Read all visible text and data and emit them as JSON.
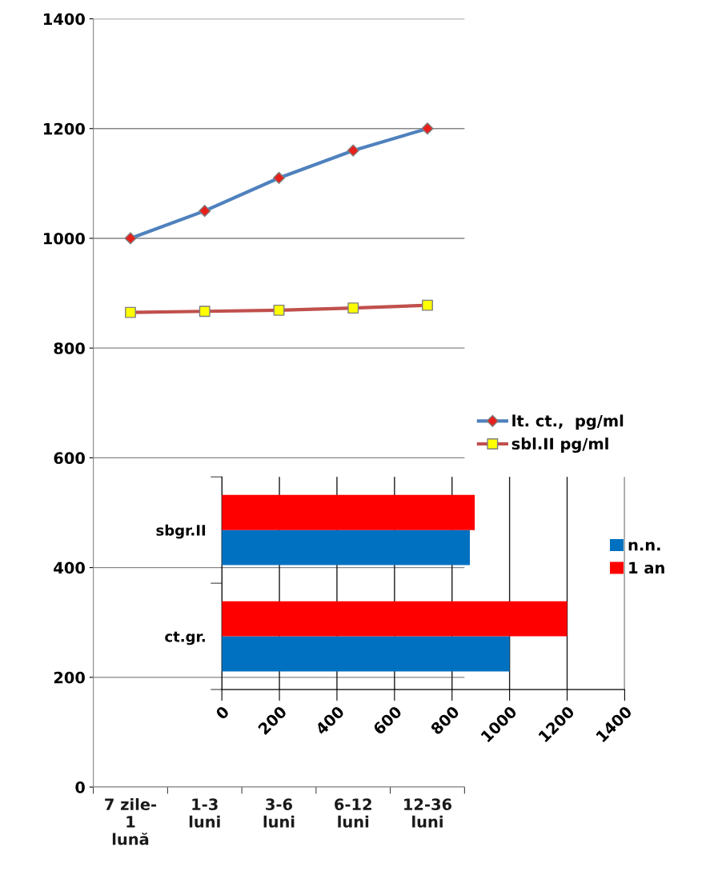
{
  "chart_data": [
    {
      "type": "line",
      "categories": [
        "7 zile-\n1\nlună",
        "1-3\nluni",
        "3-6\nluni",
        "6-12\nluni",
        "12-36\nluni"
      ],
      "series": [
        {
          "name": "lt. ct.,  pg/ml",
          "color": "#4f81bd",
          "marker": "diamond",
          "colors": [
            "#e8201c",
            "#e8201c",
            "#e8201c",
            "#e8201c",
            "#e8201c"
          ],
          "values": [
            1000,
            1050,
            1110,
            1160,
            1200
          ]
        },
        {
          "name": "sbl.II pg/ml",
          "color": "#c0504d",
          "marker": "square",
          "colors": [
            "#ffff00",
            "#ffff00",
            "#ffff00",
            "#ffff00",
            "#ffff00"
          ],
          "values": [
            865,
            867,
            869,
            873,
            878
          ]
        }
      ],
      "ylim": [
        0,
        1400
      ],
      "yticks": [
        0,
        200,
        400,
        600,
        800,
        1000,
        1200,
        1400
      ],
      "grid": "y",
      "legend": "right"
    },
    {
      "type": "bar",
      "orientation": "horizontal",
      "categories": [
        "sbgr.II",
        "ct.gr."
      ],
      "series": [
        {
          "name": "n.n.",
          "color": "#0070c0",
          "values": [
            862,
            1000
          ]
        },
        {
          "name": "1 an",
          "color": "#ff0000",
          "values": [
            879,
            1200
          ]
        }
      ],
      "xlim": [
        0,
        1400
      ],
      "xticks": [
        0,
        200,
        400,
        600,
        800,
        1000,
        1200,
        1400
      ],
      "grid": "x",
      "legend": "right"
    }
  ]
}
